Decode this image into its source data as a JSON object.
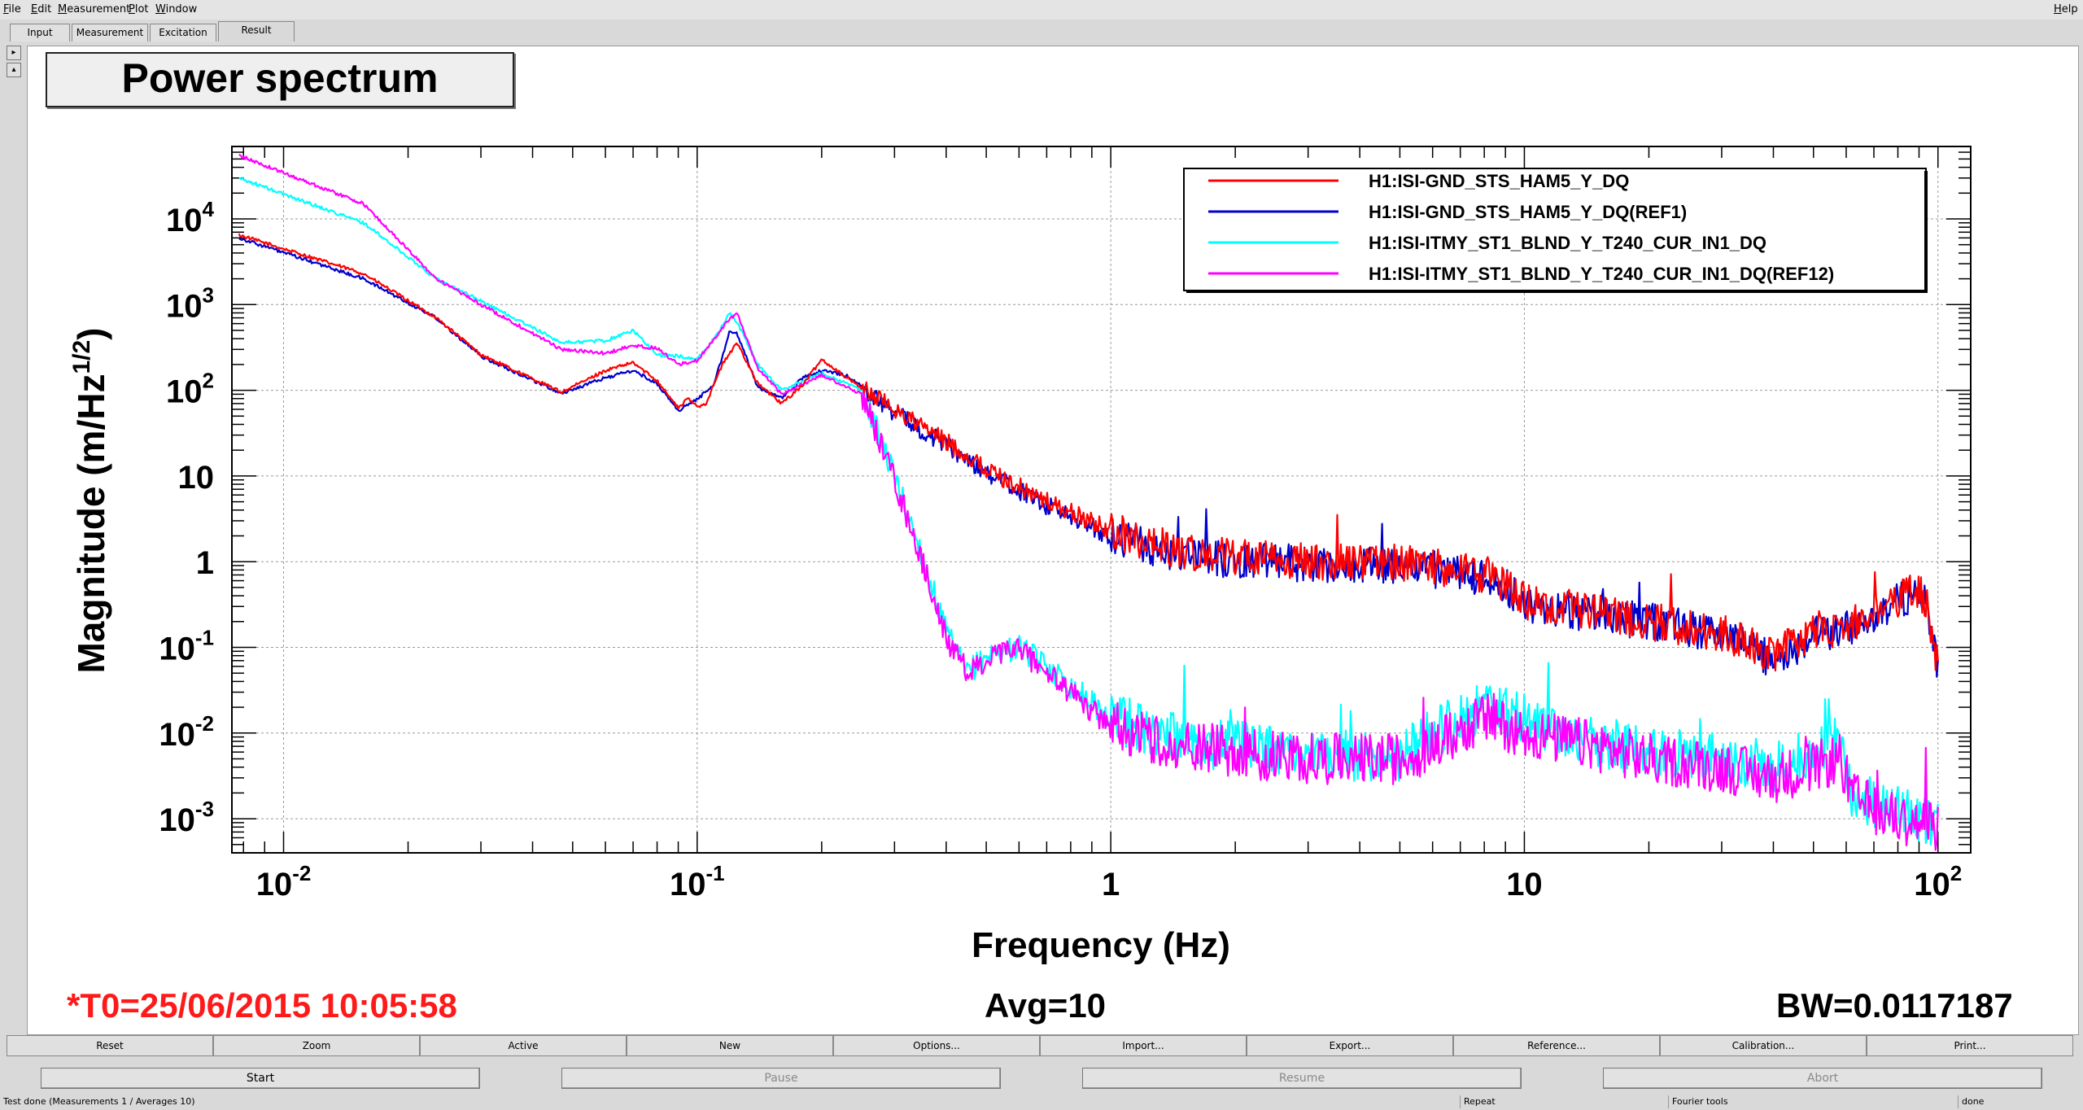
{
  "menu": {
    "items": [
      "File",
      "Edit",
      "Measurement",
      "Plot",
      "Window"
    ],
    "help": "Help"
  },
  "tabs": [
    {
      "label": "Input",
      "active": false
    },
    {
      "label": "Measurement",
      "active": false
    },
    {
      "label": "Excitation",
      "active": false
    },
    {
      "label": "Result",
      "active": true
    }
  ],
  "plot_title": "Power spectrum",
  "footer": {
    "t0": "*T0=25/06/2015 10:05:58",
    "avg": "Avg=10",
    "bw": "BW=0.0117187"
  },
  "colors": {
    "t0_text": "#ff1a1a",
    "series_red": "#ff0000",
    "series_blue": "#0000cc",
    "series_cyan": "#00ffff",
    "series_magenta": "#ff00ff"
  },
  "chart_data": {
    "type": "line",
    "xlabel": "Frequency (Hz)",
    "ylabel": "Magnitude (m/Hz",
    "ylabel_sup": "1/2",
    "ylabel_end": ")",
    "x_scale": "log",
    "y_scale": "log",
    "xlim": [
      0.0075,
      120
    ],
    "ylim": [
      0.0004,
      70000
    ],
    "grid": true,
    "legend_position": "top-right",
    "x_ticks": [
      {
        "value": 0.01,
        "label": "10",
        "sup": "-2"
      },
      {
        "value": 0.1,
        "label": "10",
        "sup": "-1"
      },
      {
        "value": 1,
        "label": "1",
        "sup": ""
      },
      {
        "value": 10,
        "label": "10",
        "sup": ""
      },
      {
        "value": 100,
        "label": "10",
        "sup": "2"
      }
    ],
    "y_ticks": [
      {
        "value": 10000,
        "label": "10",
        "sup": "4"
      },
      {
        "value": 1000,
        "label": "10",
        "sup": "3"
      },
      {
        "value": 100,
        "label": "10",
        "sup": "2"
      },
      {
        "value": 10,
        "label": "10",
        "sup": ""
      },
      {
        "value": 1,
        "label": "1",
        "sup": ""
      },
      {
        "value": 0.1,
        "label": "10",
        "sup": "-1"
      },
      {
        "value": 0.01,
        "label": "10",
        "sup": "-2"
      },
      {
        "value": 0.001,
        "label": "10",
        "sup": "-3"
      }
    ],
    "series": [
      {
        "name": "H1:ISI-GND_STS_HAM5_Y_DQ",
        "color": "#ff0000",
        "noise": 0.22,
        "points": [
          [
            0.0078,
            6500
          ],
          [
            0.0156,
            2300
          ],
          [
            0.0234,
            700
          ],
          [
            0.03,
            260
          ],
          [
            0.047,
            95
          ],
          [
            0.06,
            170
          ],
          [
            0.07,
            210
          ],
          [
            0.08,
            130
          ],
          [
            0.09,
            62
          ],
          [
            0.095,
            80
          ],
          [
            0.1,
            65
          ],
          [
            0.105,
            70
          ],
          [
            0.115,
            200
          ],
          [
            0.125,
            360
          ],
          [
            0.14,
            120
          ],
          [
            0.16,
            70
          ],
          [
            0.18,
            115
          ],
          [
            0.2,
            230
          ],
          [
            0.23,
            140
          ],
          [
            0.3,
            60
          ],
          [
            0.4,
            25
          ],
          [
            0.5,
            12
          ],
          [
            0.7,
            5
          ],
          [
            1,
            2.3
          ],
          [
            1.5,
            1.3
          ],
          [
            2,
            1.1
          ],
          [
            3,
            1
          ],
          [
            5,
            1
          ],
          [
            7,
            0.8
          ],
          [
            9,
            0.55
          ],
          [
            10,
            0.35
          ],
          [
            15,
            0.25
          ],
          [
            20,
            0.2
          ],
          [
            30,
            0.15
          ],
          [
            40,
            0.08
          ],
          [
            50,
            0.15
          ],
          [
            60,
            0.17
          ],
          [
            70,
            0.25
          ],
          [
            80,
            0.35
          ],
          [
            90,
            0.5
          ],
          [
            95,
            0.25
          ],
          [
            100,
            0.06
          ]
        ]
      },
      {
        "name": "H1:ISI-GND_STS_HAM5_Y_DQ(REF1)",
        "color": "#0000cc",
        "noise": 0.22,
        "points": [
          [
            0.0078,
            6000
          ],
          [
            0.0156,
            2000
          ],
          [
            0.0234,
            700
          ],
          [
            0.03,
            250
          ],
          [
            0.047,
            92
          ],
          [
            0.06,
            140
          ],
          [
            0.07,
            170
          ],
          [
            0.08,
            120
          ],
          [
            0.09,
            58
          ],
          [
            0.1,
            78
          ],
          [
            0.11,
            120
          ],
          [
            0.12,
            500
          ],
          [
            0.125,
            450
          ],
          [
            0.14,
            110
          ],
          [
            0.16,
            80
          ],
          [
            0.18,
            140
          ],
          [
            0.2,
            170
          ],
          [
            0.23,
            150
          ],
          [
            0.3,
            55
          ],
          [
            0.4,
            23
          ],
          [
            0.5,
            11
          ],
          [
            0.7,
            4.5
          ],
          [
            1,
            2.0
          ],
          [
            1.5,
            1.2
          ],
          [
            2,
            1.05
          ],
          [
            3,
            0.95
          ],
          [
            5,
            0.9
          ],
          [
            7,
            0.75
          ],
          [
            9,
            0.5
          ],
          [
            10,
            0.33
          ],
          [
            15,
            0.24
          ],
          [
            20,
            0.2
          ],
          [
            30,
            0.14
          ],
          [
            40,
            0.07
          ],
          [
            50,
            0.14
          ],
          [
            60,
            0.16
          ],
          [
            70,
            0.24
          ],
          [
            80,
            0.34
          ],
          [
            90,
            0.48
          ],
          [
            95,
            0.24
          ],
          [
            100,
            0.06
          ]
        ]
      },
      {
        "name": "H1:ISI-ITMY_ST1_BLND_Y_T240_CUR_IN1_DQ",
        "color": "#00ffff",
        "noise": 0.3,
        "points": [
          [
            0.0078,
            30000
          ],
          [
            0.0156,
            9000
          ],
          [
            0.0234,
            2000
          ],
          [
            0.03,
            1100
          ],
          [
            0.047,
            360
          ],
          [
            0.06,
            380
          ],
          [
            0.07,
            500
          ],
          [
            0.08,
            260
          ],
          [
            0.09,
            250
          ],
          [
            0.1,
            230
          ],
          [
            0.11,
            400
          ],
          [
            0.12,
            800
          ],
          [
            0.125,
            620
          ],
          [
            0.14,
            200
          ],
          [
            0.16,
            100
          ],
          [
            0.2,
            160
          ],
          [
            0.25,
            100
          ],
          [
            0.3,
            10
          ],
          [
            0.35,
            1.2
          ],
          [
            0.4,
            0.15
          ],
          [
            0.45,
            0.05
          ],
          [
            0.5,
            0.08
          ],
          [
            0.6,
            0.1
          ],
          [
            0.7,
            0.06
          ],
          [
            1,
            0.015
          ],
          [
            1.5,
            0.008
          ],
          [
            2,
            0.007
          ],
          [
            3,
            0.006
          ],
          [
            5,
            0.005
          ],
          [
            6,
            0.01
          ],
          [
            8,
            0.02
          ],
          [
            10,
            0.015
          ],
          [
            15,
            0.008
          ],
          [
            20,
            0.006
          ],
          [
            30,
            0.005
          ],
          [
            40,
            0.004
          ],
          [
            50,
            0.006
          ],
          [
            58,
            0.009
          ],
          [
            62,
            0.002
          ],
          [
            70,
            0.0015
          ],
          [
            80,
            0.0012
          ],
          [
            100,
            0.0009
          ]
        ]
      },
      {
        "name": "H1:ISI-ITMY_ST1_BLND_Y_T240_CUR_IN1_DQ(REF12)",
        "color": "#ff00ff",
        "noise": 0.3,
        "points": [
          [
            0.0078,
            55000
          ],
          [
            0.0156,
            15000
          ],
          [
            0.0234,
            2000
          ],
          [
            0.03,
            1000
          ],
          [
            0.047,
            300
          ],
          [
            0.06,
            270
          ],
          [
            0.07,
            330
          ],
          [
            0.08,
            310
          ],
          [
            0.09,
            200
          ],
          [
            0.1,
            220
          ],
          [
            0.11,
            400
          ],
          [
            0.12,
            700
          ],
          [
            0.125,
            780
          ],
          [
            0.14,
            180
          ],
          [
            0.16,
            90
          ],
          [
            0.2,
            150
          ],
          [
            0.25,
            90
          ],
          [
            0.3,
            9
          ],
          [
            0.35,
            1.0
          ],
          [
            0.4,
            0.13
          ],
          [
            0.45,
            0.05
          ],
          [
            0.5,
            0.07
          ],
          [
            0.6,
            0.1
          ],
          [
            0.7,
            0.05
          ],
          [
            1,
            0.012
          ],
          [
            1.5,
            0.007
          ],
          [
            2,
            0.006
          ],
          [
            3,
            0.005
          ],
          [
            5,
            0.005
          ],
          [
            6,
            0.007
          ],
          [
            8,
            0.015
          ],
          [
            10,
            0.01
          ],
          [
            15,
            0.007
          ],
          [
            20,
            0.005
          ],
          [
            30,
            0.004
          ],
          [
            40,
            0.003
          ],
          [
            50,
            0.004
          ],
          [
            58,
            0.005
          ],
          [
            62,
            0.0018
          ],
          [
            70,
            0.0013
          ],
          [
            80,
            0.001
          ],
          [
            100,
            0.0008
          ]
        ]
      }
    ]
  },
  "toolbar": [
    "Reset",
    "Zoom",
    "Active",
    "New",
    "Options...",
    "Import...",
    "Export...",
    "Reference...",
    "Calibration...",
    "Print..."
  ],
  "controls": [
    {
      "label": "Start",
      "enabled": true
    },
    {
      "label": "Pause",
      "enabled": false
    },
    {
      "label": "Resume",
      "enabled": false
    },
    {
      "label": "Abort",
      "enabled": false
    }
  ],
  "status": {
    "message": "Test done (Measurements 1 / Averages 10)",
    "repeat": "Repeat",
    "tools": "Fourier tools",
    "state": "done"
  }
}
